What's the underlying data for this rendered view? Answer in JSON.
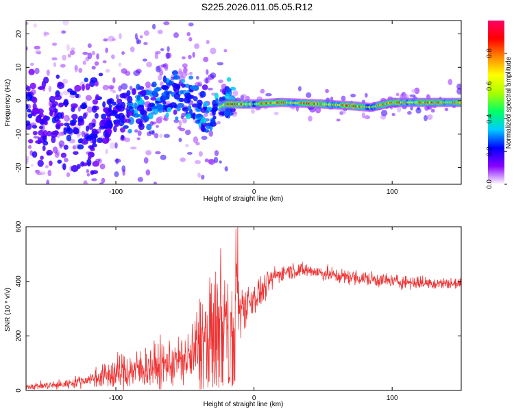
{
  "title": "S225.2026.011.05.05.R12",
  "chart_data": [
    {
      "type": "heatmap",
      "name": "spectrogram",
      "xlabel": "Height of straight line (km)",
      "ylabel": "Frequency (Hz)",
      "xlim": [
        -165,
        150
      ],
      "ylim": [
        -25,
        24
      ],
      "xticks": [
        -100,
        0,
        100
      ],
      "yticks": [
        -20,
        -10,
        0,
        10,
        20
      ],
      "colorbar": {
        "label": "Normalized spectral amplitude",
        "range": [
          0,
          1
        ],
        "ticks": [
          0.0,
          0.2,
          0.4,
          0.6,
          0.8
        ],
        "tick_labels": [
          "0.0",
          "0.2",
          "0.4",
          "0.6",
          "0.8"
        ],
        "colors": [
          "#ffffff",
          "#8800ff",
          "#0000ff",
          "#00ccff",
          "#00ff66",
          "#aaff00",
          "#ffff00",
          "#ff8800",
          "#ff0000",
          "#ff0066"
        ]
      },
      "ridge": {
        "description_points": [
          [
            -165,
            -5
          ],
          [
            -120,
            -8
          ],
          [
            -100,
            -5
          ],
          [
            -80,
            -1
          ],
          [
            -60,
            1
          ],
          [
            -45,
            2
          ],
          [
            -40,
            -5
          ],
          [
            -30,
            -3
          ],
          [
            -20,
            -1
          ],
          [
            -10,
            -1
          ],
          [
            0,
            -1
          ],
          [
            20,
            -0.5
          ],
          [
            50,
            -1
          ],
          [
            70,
            -1.5
          ],
          [
            85,
            -2
          ],
          [
            100,
            -0.5
          ],
          [
            150,
            -0.5
          ]
        ]
      }
    },
    {
      "type": "line",
      "name": "snr",
      "xlabel": "Height of straight line (km)",
      "ylabel": "SNR (10 * v/v)",
      "xlim": [
        -165,
        150
      ],
      "ylim": [
        0,
        600
      ],
      "xticks": [
        -100,
        0,
        100
      ],
      "yticks": [
        0,
        200,
        400,
        600
      ],
      "color": "#ee3333",
      "trend": [
        [
          -165,
          15
        ],
        [
          -140,
          20
        ],
        [
          -120,
          40
        ],
        [
          -100,
          60
        ],
        [
          -80,
          80
        ],
        [
          -60,
          100
        ],
        [
          -45,
          120
        ],
        [
          -35,
          200
        ],
        [
          -25,
          280
        ],
        [
          -15,
          300
        ],
        [
          -5,
          320
        ],
        [
          5,
          360
        ],
        [
          15,
          420
        ],
        [
          25,
          440
        ],
        [
          40,
          440
        ],
        [
          60,
          420
        ],
        [
          80,
          410
        ],
        [
          100,
          400
        ],
        [
          120,
          395
        ],
        [
          150,
          390
        ]
      ],
      "noise": [
        [
          -165,
          10
        ],
        [
          -120,
          20
        ],
        [
          -100,
          60
        ],
        [
          -80,
          70
        ],
        [
          -50,
          80
        ],
        [
          -40,
          160
        ],
        [
          -30,
          180
        ],
        [
          -20,
          140
        ],
        [
          -10,
          100
        ],
        [
          0,
          60
        ],
        [
          15,
          30
        ],
        [
          30,
          25
        ],
        [
          80,
          25
        ],
        [
          150,
          20
        ]
      ]
    }
  ]
}
